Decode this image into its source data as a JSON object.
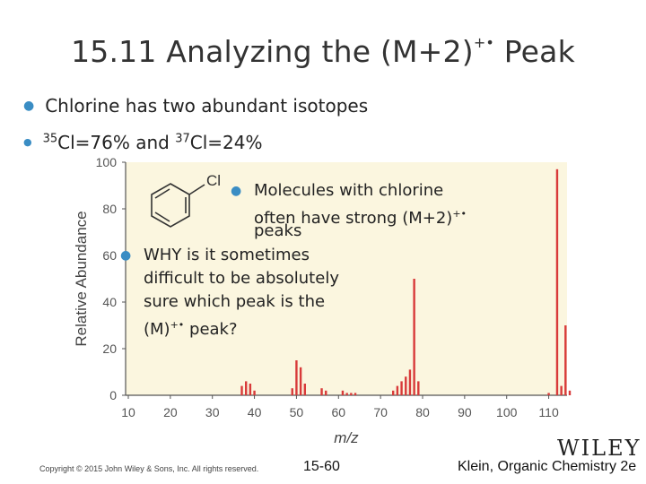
{
  "slide": {
    "title_main": "15.11 Analyzing the (M+2)",
    "title_sup": "+•",
    "title_end": " Peak",
    "bullet1": "Chlorine has two abundant isotopes",
    "bullet2_sup1": "35",
    "bullet2_part1": "Cl=76% and ",
    "bullet2_sup2": "37",
    "bullet2_part2": "Cl=24%",
    "overlay1_line1": "Molecules with chlorine",
    "overlay1_line2a": "often have strong (M+2)",
    "overlay1_sup": "+•",
    "overlay1_line3": "peaks",
    "overlay2_line1": "WHY is it sometimes",
    "overlay2_line2": "difficult to be absolutely",
    "overlay2_line3": "sure which peak is the",
    "overlay2_line4a": "(M)",
    "overlay2_sup": "+•",
    "overlay2_line4b": " peak?",
    "copyright": "Copyright © 2015 John Wiley & Sons, Inc. All rights reserved.",
    "page_number": "15-60",
    "book": "Klein, Organic Chemistry 2e",
    "publisher_logo": "WILEY",
    "molecule_label": "Cl"
  },
  "chart_data": {
    "type": "bar",
    "xlabel": "m/z",
    "ylabel": "Relative Abundance",
    "xlim": [
      10,
      115
    ],
    "ylim": [
      0,
      100
    ],
    "xticks": [
      10,
      20,
      30,
      40,
      50,
      60,
      70,
      80,
      90,
      100,
      110
    ],
    "yticks": [
      0,
      20,
      40,
      60,
      80,
      100
    ],
    "x": [
      37,
      38,
      39,
      40,
      49,
      50,
      51,
      52,
      56,
      57,
      61,
      62,
      63,
      64,
      73,
      74,
      75,
      76,
      77,
      78,
      79,
      110,
      112,
      113,
      114,
      115
    ],
    "values": [
      4,
      6,
      5,
      2,
      3,
      15,
      12,
      5,
      3,
      2,
      2,
      1,
      1,
      1,
      2,
      4,
      6,
      8,
      11,
      50,
      6,
      1,
      97,
      4,
      30,
      2
    ],
    "colors": {
      "bar": "#d83a3a",
      "axis": "#555555",
      "background": "#fbf6df"
    }
  }
}
